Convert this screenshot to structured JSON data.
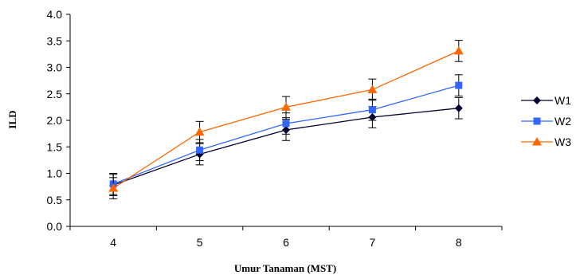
{
  "chart_data": {
    "type": "line",
    "xlabel": "Umur Tanaman (MST)",
    "ylabel": "ILD",
    "categories": [
      "4",
      "5",
      "6",
      "7",
      "8"
    ],
    "ylim": [
      0,
      4
    ],
    "yticks": [
      "0.0",
      "0.5",
      "1.0",
      "1.5",
      "2.0",
      "2.5",
      "3.0",
      "3.5",
      "4.0"
    ],
    "grid": false,
    "legend_position": "right",
    "series": [
      {
        "name": "W1",
        "color": "#000033",
        "marker": "diamond",
        "values": [
          0.78,
          1.36,
          1.82,
          2.06,
          2.23
        ],
        "errors": [
          0.2,
          0.2,
          0.2,
          0.2,
          0.2
        ]
      },
      {
        "name": "W2",
        "color": "#3366FF",
        "marker": "square",
        "values": [
          0.8,
          1.44,
          1.94,
          2.2,
          2.66
        ],
        "errors": [
          0.2,
          0.2,
          0.2,
          0.2,
          0.2
        ]
      },
      {
        "name": "W3",
        "color": "#FF6600",
        "marker": "triangle",
        "values": [
          0.72,
          1.78,
          2.25,
          2.58,
          3.31
        ],
        "errors": [
          0.2,
          0.2,
          0.2,
          0.2,
          0.2
        ]
      }
    ]
  }
}
